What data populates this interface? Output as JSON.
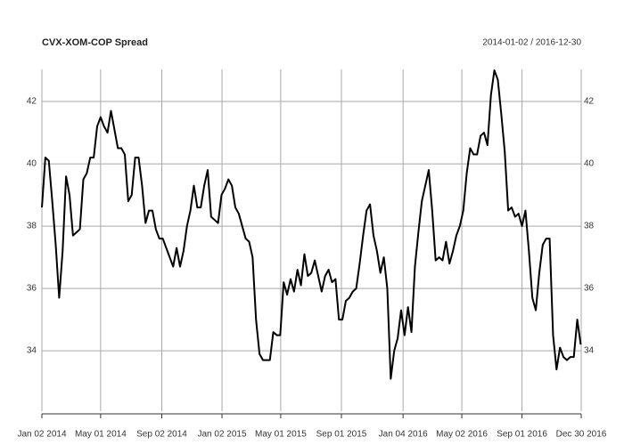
{
  "chart_data": {
    "type": "line",
    "title": "CVX-XOM-COP Spread",
    "subtitle": "2014-01-02 / 2016-12-30",
    "x": [
      "2014-01-02",
      "2014-01-09",
      "2014-01-16",
      "2014-01-23",
      "2014-01-30",
      "2014-02-06",
      "2014-02-13",
      "2014-02-20",
      "2014-02-27",
      "2014-03-06",
      "2014-03-13",
      "2014-03-20",
      "2014-03-27",
      "2014-04-03",
      "2014-04-10",
      "2014-04-17",
      "2014-04-24",
      "2014-05-01",
      "2014-05-08",
      "2014-05-15",
      "2014-05-22",
      "2014-05-29",
      "2014-06-05",
      "2014-06-12",
      "2014-06-19",
      "2014-06-26",
      "2014-07-03",
      "2014-07-10",
      "2014-07-17",
      "2014-07-24",
      "2014-07-31",
      "2014-08-07",
      "2014-08-14",
      "2014-08-21",
      "2014-08-28",
      "2014-09-04",
      "2014-09-11",
      "2014-09-18",
      "2014-09-25",
      "2014-10-02",
      "2014-10-09",
      "2014-10-16",
      "2014-10-23",
      "2014-10-30",
      "2014-11-06",
      "2014-11-13",
      "2014-11-20",
      "2014-11-27",
      "2014-12-04",
      "2014-12-11",
      "2014-12-18",
      "2014-12-25",
      "2015-01-01",
      "2015-01-08",
      "2015-01-15",
      "2015-01-22",
      "2015-01-29",
      "2015-02-05",
      "2015-02-12",
      "2015-02-19",
      "2015-02-26",
      "2015-03-05",
      "2015-03-12",
      "2015-03-19",
      "2015-03-26",
      "2015-04-02",
      "2015-04-09",
      "2015-04-16",
      "2015-04-23",
      "2015-04-30",
      "2015-05-07",
      "2015-05-14",
      "2015-05-21",
      "2015-05-28",
      "2015-06-04",
      "2015-06-11",
      "2015-06-18",
      "2015-06-25",
      "2015-07-02",
      "2015-07-09",
      "2015-07-16",
      "2015-07-23",
      "2015-07-30",
      "2015-08-06",
      "2015-08-13",
      "2015-08-20",
      "2015-08-27",
      "2015-09-03",
      "2015-09-10",
      "2015-09-17",
      "2015-09-24",
      "2015-10-01",
      "2015-10-08",
      "2015-10-15",
      "2015-10-22",
      "2015-10-29",
      "2015-11-05",
      "2015-11-12",
      "2015-11-19",
      "2015-11-26",
      "2015-12-03",
      "2015-12-10",
      "2015-12-17",
      "2015-12-24",
      "2015-12-31",
      "2016-01-07",
      "2016-01-14",
      "2016-01-21",
      "2016-01-28",
      "2016-02-04",
      "2016-02-11",
      "2016-02-18",
      "2016-02-25",
      "2016-03-03",
      "2016-03-10",
      "2016-03-17",
      "2016-03-24",
      "2016-03-31",
      "2016-04-07",
      "2016-04-14",
      "2016-04-21",
      "2016-04-28",
      "2016-05-05",
      "2016-05-12",
      "2016-05-19",
      "2016-05-26",
      "2016-06-02",
      "2016-06-09",
      "2016-06-16",
      "2016-06-23",
      "2016-06-30",
      "2016-07-07",
      "2016-07-14",
      "2016-07-21",
      "2016-07-28",
      "2016-08-04",
      "2016-08-11",
      "2016-08-18",
      "2016-08-25",
      "2016-09-01",
      "2016-09-08",
      "2016-09-15",
      "2016-09-22",
      "2016-09-29",
      "2016-10-06",
      "2016-10-13",
      "2016-10-20",
      "2016-10-27",
      "2016-11-03",
      "2016-11-10",
      "2016-11-17",
      "2016-11-24",
      "2016-12-01",
      "2016-12-08",
      "2016-12-15",
      "2016-12-22",
      "2016-12-29"
    ],
    "series": [
      {
        "name": "CVX-XOM-COP Spread",
        "color": "#000000",
        "values": [
          38.6,
          40.2,
          40.1,
          38.8,
          37.4,
          35.7,
          37.2,
          39.6,
          39.0,
          37.7,
          37.8,
          37.9,
          39.5,
          39.7,
          40.2,
          40.2,
          41.2,
          41.5,
          41.2,
          41.0,
          41.7,
          41.1,
          40.5,
          40.5,
          40.3,
          38.8,
          39.0,
          40.2,
          40.2,
          39.3,
          38.1,
          38.5,
          38.5,
          37.9,
          37.6,
          37.6,
          37.3,
          37.0,
          36.7,
          37.3,
          36.7,
          37.2,
          38.0,
          38.5,
          39.3,
          38.6,
          38.6,
          39.3,
          39.8,
          38.3,
          38.2,
          38.1,
          39.0,
          39.2,
          39.5,
          39.3,
          38.6,
          38.4,
          38.0,
          37.6,
          37.5,
          37.0,
          35.0,
          33.9,
          33.7,
          33.7,
          33.7,
          34.6,
          34.5,
          34.5,
          36.2,
          35.8,
          36.3,
          35.9,
          36.6,
          36.1,
          37.1,
          36.4,
          36.5,
          36.9,
          36.4,
          35.9,
          36.4,
          36.6,
          36.2,
          36.3,
          35.0,
          35.0,
          35.6,
          35.7,
          35.9,
          36.0,
          36.8,
          37.7,
          38.5,
          38.7,
          37.7,
          37.2,
          36.5,
          37.0,
          36.0,
          33.1,
          34.0,
          34.4,
          35.3,
          34.5,
          35.4,
          34.6,
          36.7,
          37.8,
          38.8,
          39.3,
          39.8,
          38.5,
          36.9,
          37.0,
          36.9,
          37.5,
          36.8,
          37.2,
          37.7,
          38.0,
          38.5,
          39.7,
          40.5,
          40.3,
          40.3,
          40.9,
          41.0,
          40.6,
          42.2,
          43.0,
          42.7,
          41.6,
          40.4,
          38.5,
          38.6,
          38.3,
          38.4,
          38.0,
          38.5,
          37.2,
          35.7,
          35.3,
          36.5,
          37.4,
          37.6,
          37.6,
          34.5,
          33.4,
          34.1,
          33.8,
          33.7,
          33.8,
          33.8,
          35.0,
          34.2
        ]
      }
    ],
    "xlim": [
      "2014-01-02",
      "2016-12-30"
    ],
    "xticks": [
      {
        "value": "2014-01-02",
        "label": "Jan 02 2014"
      },
      {
        "value": "2014-05-01",
        "label": "May 01 2014"
      },
      {
        "value": "2014-09-02",
        "label": "Sep 02 2014"
      },
      {
        "value": "2015-01-02",
        "label": "Jan 02 2015"
      },
      {
        "value": "2015-05-01",
        "label": "May 01 2015"
      },
      {
        "value": "2015-09-01",
        "label": "Sep 01 2015"
      },
      {
        "value": "2016-01-04",
        "label": "Jan 04 2016"
      },
      {
        "value": "2016-05-02",
        "label": "May 02 2016"
      },
      {
        "value": "2016-09-01",
        "label": "Sep 01 2016"
      },
      {
        "value": "2016-12-30",
        "label": "Dec 30 2016"
      }
    ],
    "ylim": [
      32.06,
      43.03
    ],
    "yticks": [
      34,
      36,
      38,
      40,
      42
    ],
    "grid": true
  }
}
